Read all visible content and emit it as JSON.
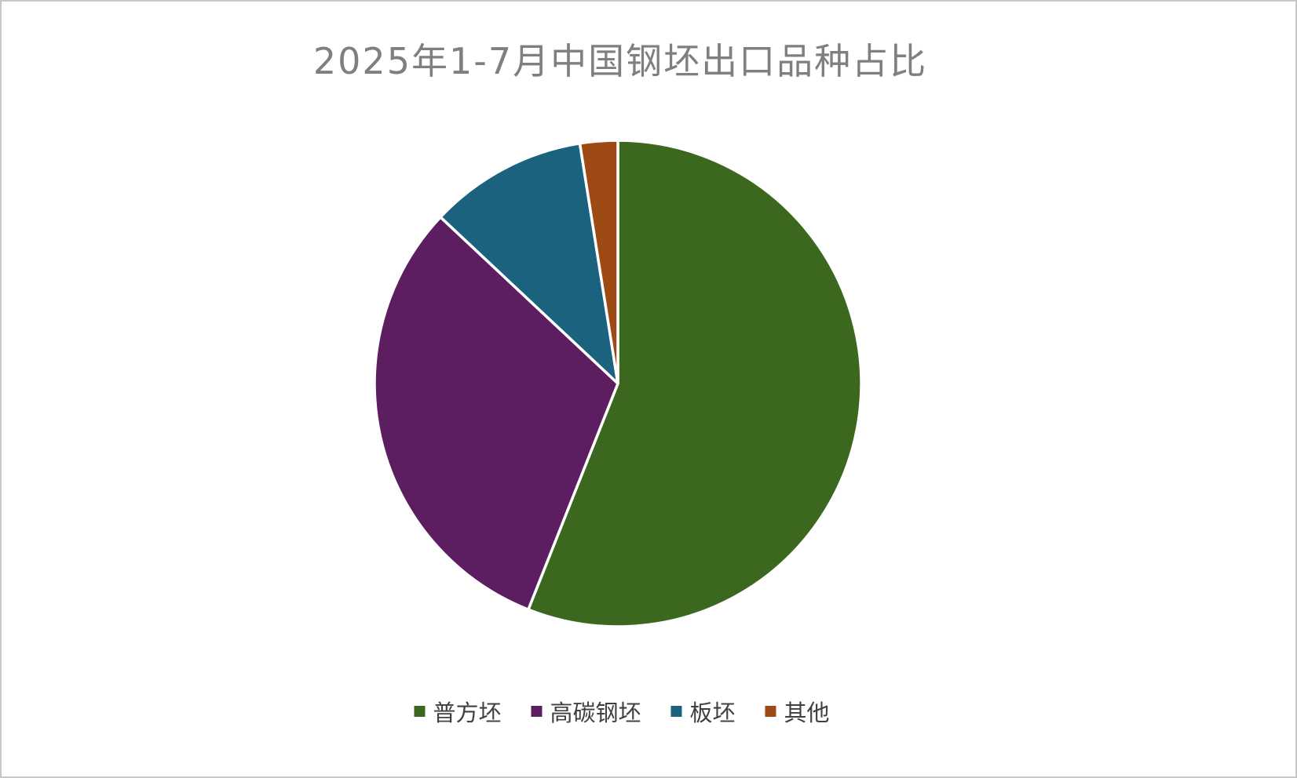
{
  "page": {
    "background_color": "#ffffff",
    "border_color": "#c8c8c8"
  },
  "chart_data": {
    "type": "pie",
    "title": "2025年1-7月中国钢坯出口品种占比",
    "title_color": "#7f7f7f",
    "categories": [
      "普方坯",
      "高碳钢坯",
      "板坯",
      "其他"
    ],
    "values": [
      56,
      31,
      10.5,
      2.5
    ],
    "colors": [
      "#3c671e",
      "#5c1e60",
      "#1a627d",
      "#9e4a15"
    ],
    "unit": "percent",
    "start_angle_deg": 0,
    "direction": "clockwise",
    "legend_position": "bottom",
    "data_labels": "none",
    "slice_separator_color": "#ffffff"
  }
}
